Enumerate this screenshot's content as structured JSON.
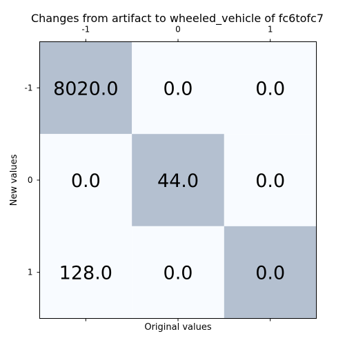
{
  "chart_data": {
    "type": "heatmap",
    "title": "Changes from artifact to wheeled_vehicle of fc6tofc7",
    "xlabel": "Original values",
    "ylabel": "New values",
    "x_categories": [
      "-1",
      "0",
      "1"
    ],
    "y_categories": [
      "-1",
      "0",
      "1"
    ],
    "x_tick_position": "top-and-bottom",
    "values": [
      [
        8020.0,
        0.0,
        0.0
      ],
      [
        0.0,
        44.0,
        0.0
      ],
      [
        128.0,
        0.0,
        0.0
      ]
    ],
    "cell_labels": [
      [
        "8020.0",
        "0.0",
        "0.0"
      ],
      [
        "0.0",
        "44.0",
        "0.0"
      ],
      [
        "128.0",
        "0.0",
        "0.0"
      ]
    ],
    "highlight": [
      [
        true,
        false,
        false
      ],
      [
        false,
        true,
        false
      ],
      [
        false,
        false,
        true
      ]
    ],
    "colors": {
      "highlight": "#b4c0d0",
      "background": "#f8fbff",
      "frame": "#000000"
    },
    "grid": false,
    "legend": "none"
  }
}
